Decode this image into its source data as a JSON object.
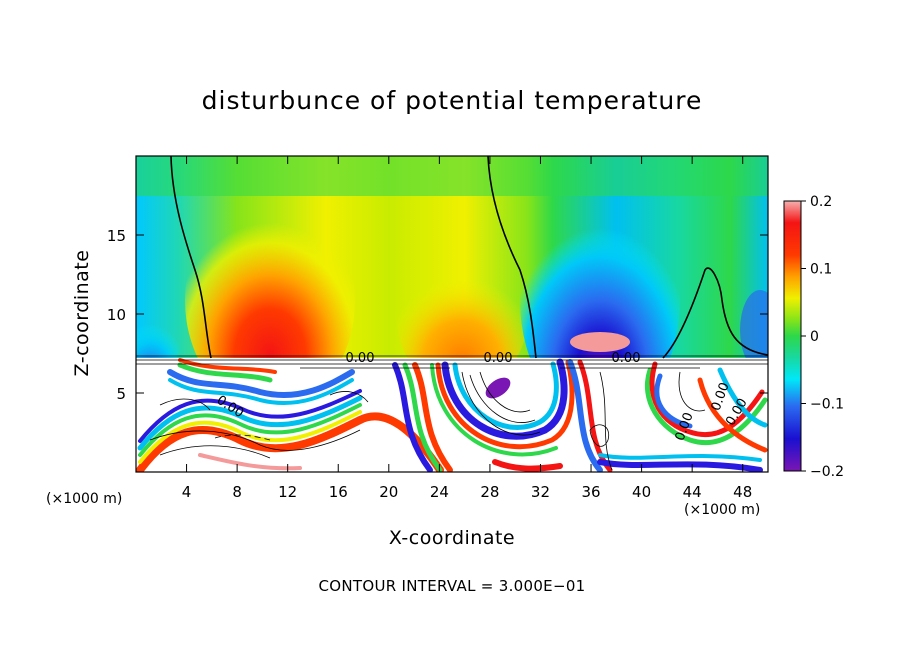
{
  "chart_data": {
    "type": "heatmap",
    "title": "disturbunce of potential temperature",
    "xlabel": "X-coordinate",
    "ylabel": "Z-coordinate",
    "x_unit": "(×1000 m)",
    "z_unit": "(×1000 m)",
    "xlim": [
      0,
      50
    ],
    "ylim": [
      0,
      20
    ],
    "x_ticks": [
      "4",
      "8",
      "12",
      "16",
      "20",
      "24",
      "28",
      "32",
      "36",
      "40",
      "44",
      "48"
    ],
    "y_ticks": [
      "5",
      "10",
      "15"
    ],
    "colorbar": {
      "range": [
        -0.2,
        0.2
      ],
      "tick_labels": [
        "0.2",
        "0.1",
        "0",
        "−0.1",
        "−0.2"
      ],
      "tick_values": [
        0.2,
        0.1,
        0,
        -0.1,
        -0.2
      ]
    },
    "contour_labels": [
      "0.00",
      "0.00",
      "0.00",
      "0.00",
      "0.00",
      "0.00",
      "0.00"
    ],
    "footer": "CONTOUR INTERVAL = 3.000E−01",
    "upper_layer_anomalies": [
      {
        "x_center": 11,
        "value": 0.15
      },
      {
        "x_center": 28,
        "value": 0.1
      },
      {
        "x_center": 37,
        "value": -0.17
      },
      {
        "x_center": 45,
        "value": 0.02
      }
    ]
  },
  "colors": {
    "scale": [
      "#7a16b4",
      "#2a1ae0",
      "#2a6bf0",
      "#00c0f0",
      "#18d8a0",
      "#2ed84a",
      "#86e41a",
      "#f0f000",
      "#ffa000",
      "#ff3a00",
      "#f41414",
      "#f49a9a"
    ]
  }
}
